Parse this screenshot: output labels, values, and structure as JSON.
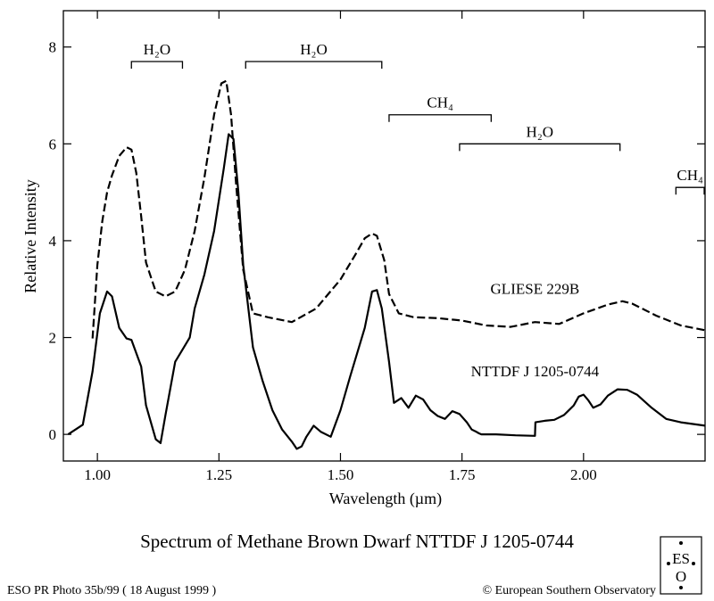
{
  "chart_data": {
    "type": "line",
    "title": "Spectrum of  Methane Brown Dwarf NTTDF  J 1205-0744",
    "xlabel": "Wavelength (µm)",
    "ylabel": "Relative Intensity",
    "xlim": [
      0.93,
      2.25
    ],
    "ylim": [
      -0.55,
      8.75
    ],
    "x_ticks": [
      1.0,
      1.25,
      1.5,
      1.75,
      2.0
    ],
    "x_tick_labels": [
      "1.00",
      "1.25",
      "1.50",
      "1.75",
      "2.00"
    ],
    "y_ticks": [
      0,
      2,
      4,
      6,
      8
    ],
    "y_tick_labels": [
      "0",
      "2",
      "4",
      "6",
      "8"
    ],
    "grid": false,
    "series": [
      {
        "name": "GLIESE  229B",
        "style": "dashed",
        "color": "#000000",
        "x": [
          0.99,
          1.0,
          1.01,
          1.02,
          1.03,
          1.045,
          1.06,
          1.07,
          1.08,
          1.09,
          1.1,
          1.12,
          1.14,
          1.16,
          1.18,
          1.2,
          1.22,
          1.24,
          1.255,
          1.265,
          1.275,
          1.285,
          1.3,
          1.32,
          1.35,
          1.4,
          1.45,
          1.5,
          1.53,
          1.55,
          1.565,
          1.575,
          1.59,
          1.6,
          1.62,
          1.65,
          1.7,
          1.75,
          1.8,
          1.85,
          1.9,
          1.95,
          2.0,
          2.05,
          2.08,
          2.1,
          2.15,
          2.2,
          2.25
        ],
        "y": [
          1.98,
          3.5,
          4.4,
          5.0,
          5.35,
          5.75,
          5.93,
          5.88,
          5.4,
          4.5,
          3.55,
          2.95,
          2.85,
          2.95,
          3.4,
          4.2,
          5.3,
          6.6,
          7.25,
          7.3,
          6.6,
          5.2,
          3.4,
          2.5,
          2.42,
          2.32,
          2.6,
          3.2,
          3.7,
          4.05,
          4.15,
          4.1,
          3.6,
          2.9,
          2.5,
          2.42,
          2.4,
          2.35,
          2.25,
          2.22,
          2.32,
          2.28,
          2.5,
          2.68,
          2.75,
          2.7,
          2.45,
          2.25,
          2.15
        ]
      },
      {
        "name": "NTTDF  J 1205-0744",
        "style": "solid",
        "color": "#000000",
        "x": [
          0.94,
          0.97,
          0.99,
          1.005,
          1.02,
          1.03,
          1.045,
          1.06,
          1.07,
          1.09,
          1.1,
          1.12,
          1.13,
          1.14,
          1.16,
          1.175,
          1.19,
          1.2,
          1.22,
          1.24,
          1.26,
          1.27,
          1.28,
          1.29,
          1.3,
          1.32,
          1.34,
          1.36,
          1.38,
          1.4,
          1.41,
          1.42,
          1.43,
          1.445,
          1.46,
          1.48,
          1.5,
          1.52,
          1.55,
          1.565,
          1.575,
          1.585,
          1.6,
          1.61,
          1.625,
          1.64,
          1.655,
          1.67,
          1.685,
          1.7,
          1.715,
          1.73,
          1.745,
          1.76,
          1.77,
          1.78,
          1.785,
          1.79,
          1.82,
          1.86,
          1.9,
          1.901,
          1.92,
          1.94,
          1.96,
          1.98,
          1.99,
          2.0,
          2.01,
          2.02,
          2.035,
          2.05,
          2.07,
          2.09,
          2.11,
          2.14,
          2.17,
          2.2,
          2.25
        ],
        "y": [
          0.0,
          0.2,
          1.3,
          2.5,
          2.95,
          2.85,
          2.2,
          1.98,
          1.95,
          1.4,
          0.6,
          -0.1,
          -0.18,
          0.4,
          1.5,
          1.75,
          2.0,
          2.6,
          3.3,
          4.2,
          5.5,
          6.2,
          6.1,
          5.0,
          3.5,
          1.8,
          1.1,
          0.5,
          0.1,
          -0.15,
          -0.3,
          -0.25,
          -0.05,
          0.18,
          0.05,
          -0.05,
          0.5,
          1.2,
          2.2,
          2.95,
          2.98,
          2.6,
          1.5,
          0.65,
          0.75,
          0.55,
          0.8,
          0.72,
          0.5,
          0.38,
          0.32,
          0.48,
          0.42,
          0.25,
          0.1,
          0.05,
          0.02,
          0.0,
          0.0,
          -0.02,
          -0.03,
          0.25,
          0.28,
          0.3,
          0.4,
          0.6,
          0.78,
          0.82,
          0.7,
          0.55,
          0.62,
          0.8,
          0.93,
          0.92,
          0.82,
          0.55,
          0.32,
          0.25,
          0.18
        ]
      }
    ],
    "bands": [
      {
        "label": "H₂O",
        "x": [
          1.07,
          1.175
        ],
        "level": 7.7
      },
      {
        "label": "H₂O",
        "x": [
          1.305,
          1.585
        ],
        "level": 7.7
      },
      {
        "label": "CH₄",
        "x": [
          1.6,
          1.81
        ],
        "level": 6.6
      },
      {
        "label": "H₂O",
        "x": [
          1.745,
          2.075
        ],
        "level": 6.0
      },
      {
        "label": "CH₄",
        "x": [
          2.19,
          2.26
        ],
        "level": 5.1
      }
    ],
    "series_labels": [
      {
        "text": "GLIESE  229B",
        "x": 1.9,
        "y": 2.9
      },
      {
        "text": "NTTDF  J 1205-0744",
        "x": 1.9,
        "y": 1.2
      }
    ]
  },
  "footer": {
    "left": "ESO PR Photo 35b/99 ( 18 August 1999 )",
    "right": "© European Southern Observatory"
  },
  "logo": {
    "line1": "ES",
    "line2": "O"
  }
}
